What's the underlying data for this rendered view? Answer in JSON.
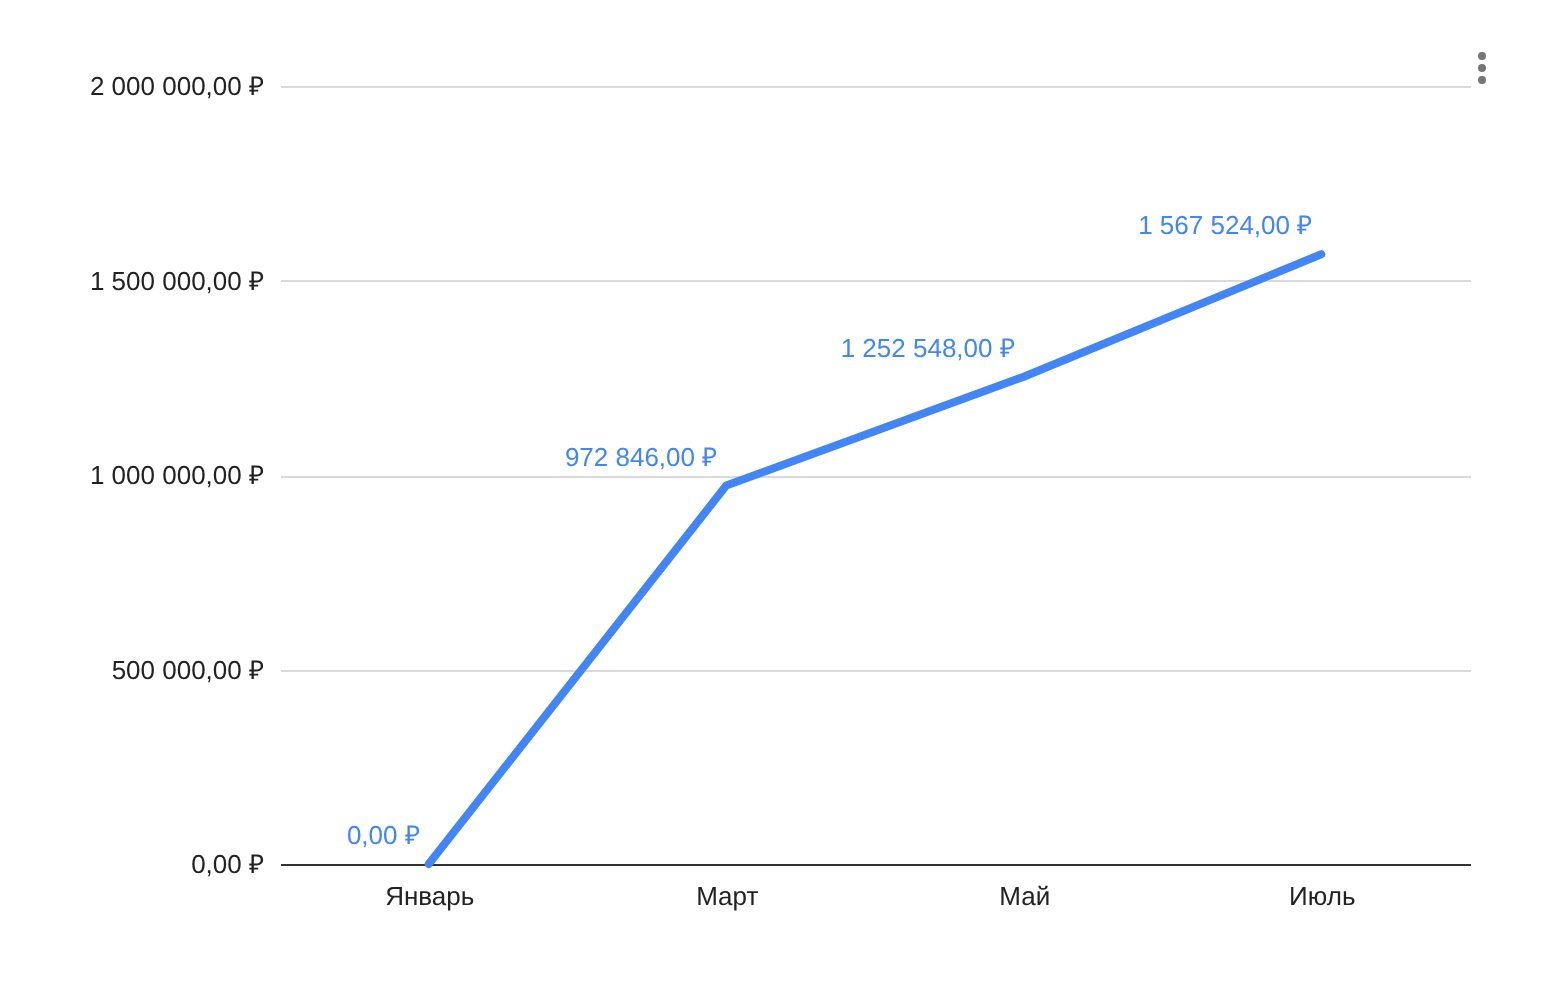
{
  "chart_data": {
    "type": "line",
    "categories": [
      "Январь",
      "Март",
      "Май",
      "Июль"
    ],
    "values": [
      0,
      972846,
      1252548,
      1567524
    ],
    "value_labels": [
      "0,00 ₽",
      "972 846,00 ₽",
      "1 252 548,00 ₽",
      "1 567 524,00 ₽"
    ],
    "color": "#4285f4",
    "ylim": [
      0,
      2000000
    ],
    "yticks": [
      {
        "value": 0,
        "label": "0,00 ₽"
      },
      {
        "value": 500000,
        "label": "500 000,00 ₽"
      },
      {
        "value": 1000000,
        "label": "1 000 000,00 ₽"
      },
      {
        "value": 1500000,
        "label": "1 500 000,00 ₽"
      },
      {
        "value": 2000000,
        "label": "2 000 000,00 ₽"
      }
    ],
    "grid": "y",
    "legend": false,
    "marker": "none",
    "line_style": "solid"
  }
}
